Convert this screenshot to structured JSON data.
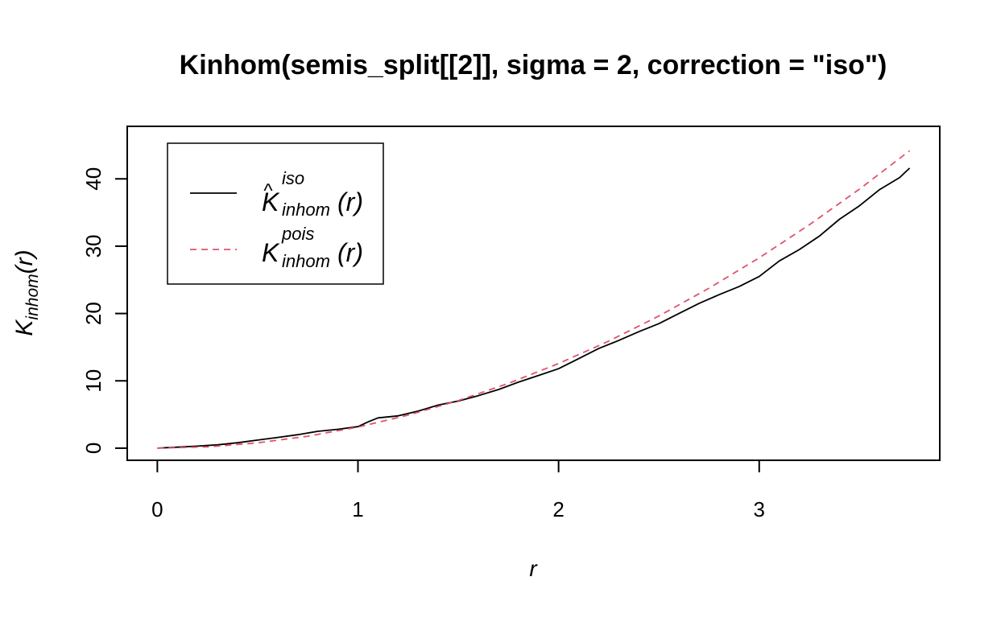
{
  "chart_data": {
    "type": "line",
    "title": "Kinhom(semis_split[[2]], sigma = 2, correction = \"iso\")",
    "xlabel": "r",
    "ylabel": {
      "base": "K",
      "sub": "inhom",
      "arg": "(r)"
    },
    "xlim": [
      -0.15,
      3.9
    ],
    "ylim": [
      -1.8,
      47.8
    ],
    "xticks": [
      0,
      1,
      2,
      3
    ],
    "yticks": [
      0,
      10,
      20,
      30,
      40
    ],
    "grid": false,
    "legend_position": "top-left",
    "series": [
      {
        "key": "iso",
        "legend": {
          "base": "K",
          "hat": "^",
          "sub": "inhom",
          "sup": "iso",
          "arg": "(r)"
        },
        "color": "#000000",
        "dash": "solid",
        "x": [
          0,
          0.1,
          0.2,
          0.3,
          0.4,
          0.5,
          0.6,
          0.7,
          0.8,
          0.9,
          1.0,
          1.05,
          1.1,
          1.2,
          1.3,
          1.4,
          1.5,
          1.6,
          1.7,
          1.8,
          1.9,
          2.0,
          2.1,
          2.2,
          2.3,
          2.4,
          2.5,
          2.6,
          2.7,
          2.8,
          2.9,
          3.0,
          3.1,
          3.2,
          3.3,
          3.4,
          3.5,
          3.6,
          3.7,
          3.75
        ],
        "y": [
          0,
          0.15,
          0.3,
          0.5,
          0.8,
          1.2,
          1.6,
          2.0,
          2.5,
          2.8,
          3.2,
          3.9,
          4.5,
          4.8,
          5.5,
          6.4,
          7.0,
          7.8,
          8.7,
          9.8,
          10.8,
          11.8,
          13.3,
          14.8,
          16.0,
          17.3,
          18.5,
          20.0,
          21.5,
          22.8,
          24.0,
          25.5,
          27.8,
          29.5,
          31.5,
          34.0,
          36.0,
          38.4,
          40.2,
          41.6
        ]
      },
      {
        "key": "pois",
        "legend": {
          "base": "K",
          "sub": "inhom",
          "sup": "pois",
          "arg": "(r)"
        },
        "color": "#df536b",
        "dash": "dashed",
        "x": [
          0,
          0.25,
          0.5,
          0.75,
          1.0,
          1.25,
          1.5,
          1.75,
          2.0,
          2.25,
          2.5,
          2.75,
          3.0,
          3.25,
          3.5,
          3.75
        ],
        "y": [
          0,
          0.2,
          0.79,
          1.77,
          3.14,
          4.91,
          7.07,
          9.62,
          12.57,
          15.9,
          19.63,
          23.76,
          28.27,
          33.18,
          38.48,
          44.18
        ]
      }
    ]
  }
}
